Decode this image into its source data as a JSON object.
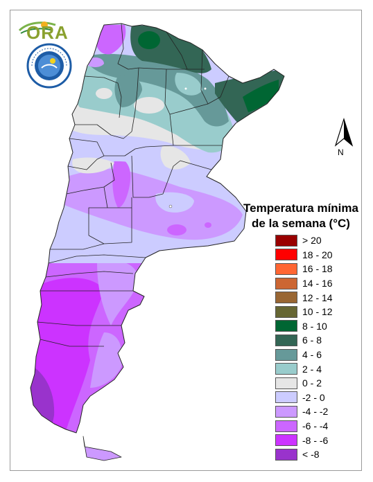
{
  "logo": {
    "text": "ORA"
  },
  "north_label": "N",
  "legend": {
    "title_line1": "Temperatura mínima",
    "title_line2": "de la semana (°C)",
    "items": [
      {
        "label": "> 20",
        "color": "#990000"
      },
      {
        "label": "18 - 20",
        "color": "#ff0000"
      },
      {
        "label": "16 - 18",
        "color": "#ff6633"
      },
      {
        "label": "14 - 16",
        "color": "#cc6633"
      },
      {
        "label": "12 - 14",
        "color": "#996633"
      },
      {
        "label": "10 - 12",
        "color": "#666633"
      },
      {
        "label": "8 - 10",
        "color": "#006633"
      },
      {
        "label": "6 - 8",
        "color": "#336655"
      },
      {
        "label": "4 - 6",
        "color": "#669999"
      },
      {
        "label": "2 - 4",
        "color": "#99cccc"
      },
      {
        "label": "0 - 2",
        "color": "#e6e6e6"
      },
      {
        "label": "-2 - 0",
        "color": "#ccccff"
      },
      {
        "label": "-4 - -2",
        "color": "#cc99ff"
      },
      {
        "label": "-6 - -4",
        "color": "#cc66ff"
      },
      {
        "label": "-8 - -6",
        "color": "#cc33ff"
      },
      {
        "label": "< -8",
        "color": "#9933cc"
      }
    ]
  }
}
